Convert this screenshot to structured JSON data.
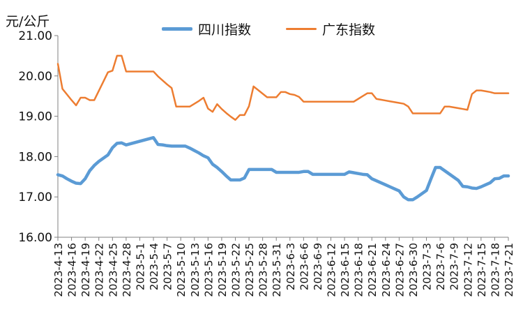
{
  "chart_data": {
    "type": "line",
    "y_unit": "元/公斤",
    "ylim": [
      16,
      21
    ],
    "yticks": [
      "16.00",
      "17.00",
      "18.00",
      "19.00",
      "20.00",
      "21.00"
    ],
    "grid": false,
    "legend_position": "top",
    "x": [
      "2023-4-13",
      "2023-4-14",
      "2023-4-15",
      "2023-4-16",
      "2023-4-17",
      "2023-4-18",
      "2023-4-19",
      "2023-4-20",
      "2023-4-21",
      "2023-4-22",
      "2023-4-23",
      "2023-4-24",
      "2023-4-25",
      "2023-4-26",
      "2023-4-27",
      "2023-4-28",
      "2023-4-29",
      "2023-4-30",
      "2023-5-1",
      "2023-5-2",
      "2023-5-3",
      "2023-5-4",
      "2023-5-5",
      "2023-5-6",
      "2023-5-7",
      "2023-5-8",
      "2023-5-9",
      "2023-5-10",
      "2023-5-11",
      "2023-5-12",
      "2023-5-13",
      "2023-5-14",
      "2023-5-15",
      "2023-5-16",
      "2023-5-17",
      "2023-5-18",
      "2023-5-19",
      "2023-5-20",
      "2023-5-21",
      "2023-5-22",
      "2023-5-23",
      "2023-5-24",
      "2023-5-25",
      "2023-5-26",
      "2023-5-27",
      "2023-5-28",
      "2023-5-29",
      "2023-5-30",
      "2023-5-31",
      "2023-6-1",
      "2023-6-2",
      "2023-6-3",
      "2023-6-4",
      "2023-6-5",
      "2023-6-6",
      "2023-6-7",
      "2023-6-8",
      "2023-6-9",
      "2023-6-10",
      "2023-6-11",
      "2023-6-12",
      "2023-6-13",
      "2023-6-14",
      "2023-6-15",
      "2023-6-16",
      "2023-6-17",
      "2023-6-18",
      "2023-6-19",
      "2023-6-20",
      "2023-6-21",
      "2023-6-22",
      "2023-6-23",
      "2023-6-24",
      "2023-6-25",
      "2023-6-26",
      "2023-6-27",
      "2023-6-28",
      "2023-6-29",
      "2023-6-30",
      "2023-7-1",
      "2023-7-2",
      "2023-7-3",
      "2023-7-4",
      "2023-7-5",
      "2023-7-6",
      "2023-7-7",
      "2023-7-8",
      "2023-7-9",
      "2023-7-10",
      "2023-7-11",
      "2023-7-12",
      "2023-7-13",
      "2023-7-14",
      "2023-7-15",
      "2023-7-16",
      "2023-7-17",
      "2023-7-18",
      "2023-7-19",
      "2023-7-20",
      "2023-7-21"
    ],
    "xtick_labels": [
      "2023-4-13",
      "2023-4-16",
      "2023-4-19",
      "2023-4-22",
      "2023-4-25",
      "2023-4-28",
      "2023-5-1",
      "2023-5-4",
      "2023-5-7",
      "2023-5-10",
      "2023-5-13",
      "2023-5-16",
      "2023-5-19",
      "2023-5-22",
      "2023-5-25",
      "2023-5-28",
      "2023-5-31",
      "2023-6-3",
      "2023-6-6",
      "2023-6-9",
      "2023-6-12",
      "2023-6-15",
      "2023-6-18",
      "2023-6-21",
      "2023-6-24",
      "2023-6-27",
      "2023-6-30",
      "2023-7-3",
      "2023-7-6",
      "2023-7-9",
      "2023-7-12",
      "2023-7-15",
      "2023-7-18",
      "2023-7-21"
    ],
    "series": [
      {
        "name": "四川指数",
        "color": "#5B9BD5",
        "values": [
          17.55,
          17.52,
          17.45,
          17.39,
          17.34,
          17.33,
          17.45,
          17.65,
          17.78,
          17.88,
          17.96,
          18.04,
          18.22,
          18.33,
          18.34,
          18.29,
          18.32,
          18.35,
          18.38,
          18.41,
          18.44,
          18.47,
          18.3,
          18.29,
          18.27,
          18.26,
          18.26,
          18.26,
          18.26,
          18.21,
          18.15,
          18.09,
          18.02,
          17.97,
          17.81,
          17.73,
          17.63,
          17.52,
          17.42,
          17.42,
          17.42,
          17.47,
          17.68,
          17.68,
          17.68,
          17.68,
          17.68,
          17.68,
          17.61,
          17.61,
          17.61,
          17.61,
          17.61,
          17.61,
          17.63,
          17.63,
          17.56,
          17.56,
          17.56,
          17.56,
          17.56,
          17.56,
          17.56,
          17.56,
          17.62,
          17.6,
          17.58,
          17.56,
          17.55,
          17.45,
          17.4,
          17.35,
          17.3,
          17.25,
          17.2,
          17.15,
          17.0,
          16.93,
          16.93,
          17.0,
          17.08,
          17.16,
          17.45,
          17.73,
          17.73,
          17.65,
          17.57,
          17.49,
          17.41,
          17.26,
          17.25,
          17.22,
          17.21,
          17.25,
          17.3,
          17.35,
          17.45,
          17.46,
          17.52,
          17.52
        ]
      },
      {
        "name": "广东指数",
        "color": "#ED7D31",
        "values": [
          20.3,
          19.68,
          19.54,
          19.4,
          19.27,
          19.46,
          19.46,
          19.4,
          19.4,
          19.63,
          19.86,
          20.09,
          20.13,
          20.5,
          20.5,
          20.11,
          20.11,
          20.11,
          20.11,
          20.11,
          20.11,
          20.11,
          19.99,
          19.89,
          19.79,
          19.7,
          19.24,
          19.24,
          19.24,
          19.24,
          19.31,
          19.38,
          19.46,
          19.19,
          19.11,
          19.3,
          19.18,
          19.08,
          18.99,
          18.91,
          19.03,
          19.03,
          19.25,
          19.74,
          19.65,
          19.56,
          19.47,
          19.47,
          19.47,
          19.6,
          19.6,
          19.55,
          19.53,
          19.48,
          19.36,
          19.36,
          19.36,
          19.36,
          19.36,
          19.36,
          19.36,
          19.36,
          19.36,
          19.36,
          19.36,
          19.36,
          19.43,
          19.5,
          19.57,
          19.57,
          19.43,
          19.41,
          19.39,
          19.37,
          19.35,
          19.33,
          19.31,
          19.24,
          19.07,
          19.07,
          19.07,
          19.07,
          19.07,
          19.07,
          19.07,
          19.24,
          19.24,
          19.22,
          19.2,
          19.18,
          19.16,
          19.55,
          19.64,
          19.64,
          19.62,
          19.6,
          19.57,
          19.57,
          19.57,
          19.57
        ]
      }
    ]
  }
}
